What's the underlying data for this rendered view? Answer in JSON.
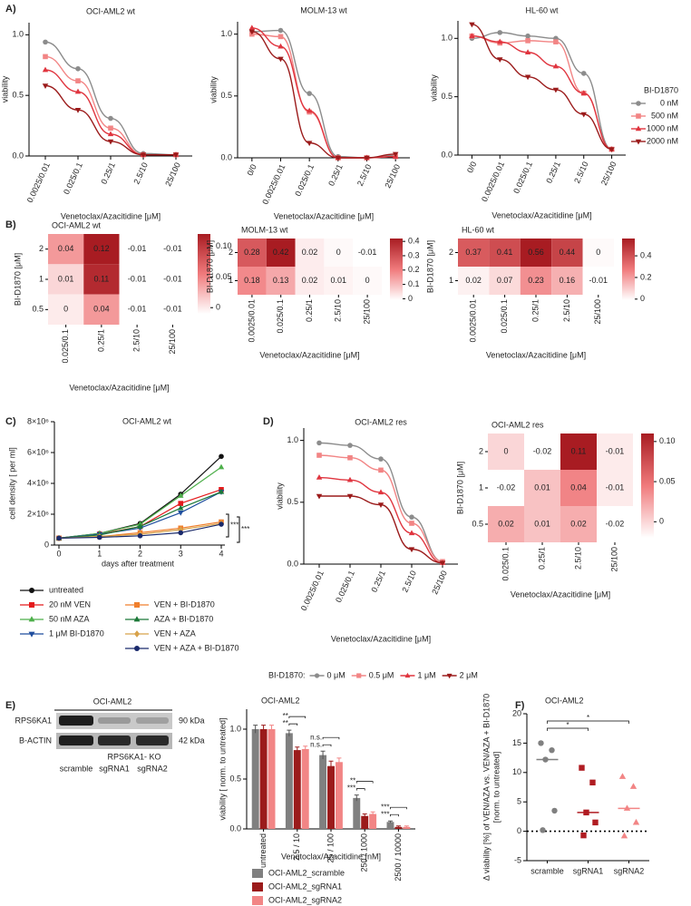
{
  "chart_data": [
    {
      "type": "curve",
      "panel": "A)",
      "title": "OCI-AML2 wt",
      "x_label": "Venetoclax/Azacitidine [μM]",
      "y_label": "viability",
      "categories": [
        "0.0025/0.01",
        "0.025/0.1",
        "0.25/1",
        "2.5/10",
        "25/100"
      ],
      "ylim": [
        0,
        1.1
      ],
      "yticks": [
        {
          "value": 0,
          "label": "0.0"
        },
        {
          "value": 0.5,
          "label": "0.5"
        },
        {
          "value": 1,
          "label": "1.0"
        }
      ],
      "series": [
        {
          "color": "#8c8c8c",
          "marker": "circle",
          "values": [
            0.94,
            0.72,
            0.31,
            0.02,
            0.01
          ]
        },
        {
          "color": "#f28585",
          "marker": "square",
          "values": [
            0.82,
            0.62,
            0.23,
            0.01,
            0.01
          ]
        },
        {
          "color": "#e0353f",
          "marker": "triangle-up",
          "values": [
            0.71,
            0.53,
            0.18,
            0.01,
            0.01
          ]
        },
        {
          "color": "#9b1b1b",
          "marker": "triangle-down",
          "values": [
            0.58,
            0.38,
            0.12,
            0.01,
            0.01
          ]
        }
      ]
    },
    {
      "type": "curve",
      "title": "MOLM-13 wt",
      "x_label": "Venetoclax/Azacitidine [μM]",
      "y_label": "viability",
      "categories": [
        "0/0",
        "0.0025/0.01",
        "0.025/0.1",
        "0.25/1",
        "2.5/10",
        "25/100"
      ],
      "ylim": [
        0,
        1.1
      ],
      "yticks": [
        {
          "value": 0,
          "label": "0.0"
        },
        {
          "value": 0.5,
          "label": "0.5"
        },
        {
          "value": 1,
          "label": "1.0"
        }
      ],
      "series": [
        {
          "color": "#8c8c8c",
          "marker": "circle",
          "values": [
            1.02,
            1.03,
            0.52,
            0.01,
            0,
            0.02
          ]
        },
        {
          "color": "#f28585",
          "marker": "square",
          "values": [
            1.0,
            0.98,
            0.37,
            0,
            0,
            0.01
          ]
        },
        {
          "color": "#e0353f",
          "marker": "triangle-up",
          "values": [
            1.05,
            0.9,
            0.38,
            0,
            0,
            0.01
          ]
        },
        {
          "color": "#9b1b1b",
          "marker": "triangle-down",
          "values": [
            1.02,
            0.8,
            0.12,
            0,
            0,
            0.03
          ]
        }
      ]
    },
    {
      "type": "curve",
      "title": "HL-60 wt",
      "x_label": "Venetoclax/Azacitidine [μM]",
      "y_label": "viability",
      "categories": [
        "0/0",
        "0.0025/0.01",
        "0.025/0.1",
        "0.25/1",
        "2.5/10",
        "25/100"
      ],
      "ylim": [
        0,
        1.15
      ],
      "yticks": [
        {
          "value": 0,
          "label": "0.0"
        },
        {
          "value": 0.5,
          "label": "0.5"
        },
        {
          "value": 1,
          "label": "1.0"
        }
      ],
      "legend": "right",
      "legend_title": "BI-D1870",
      "series": [
        {
          "name": "0 nM",
          "color": "#8c8c8c",
          "marker": "circle",
          "values": [
            1.0,
            1.05,
            1.02,
            1.0,
            0.7,
            0.05
          ]
        },
        {
          "name": "500 nM",
          "color": "#f28585",
          "marker": "square",
          "values": [
            1.02,
            0.96,
            0.98,
            0.97,
            0.53,
            0.05
          ]
        },
        {
          "name": "1000 nM",
          "color": "#e0353f",
          "marker": "triangle-up",
          "values": [
            1.02,
            0.97,
            0.88,
            0.76,
            0.53,
            0.05
          ]
        },
        {
          "name": "2000 nM",
          "color": "#9b1b1b",
          "marker": "triangle-down",
          "values": [
            1.12,
            0.82,
            0.67,
            0.56,
            0.35,
            0.05
          ]
        }
      ]
    },
    {
      "type": "heatmap",
      "panel": "B)",
      "title": "OCI-AML2 wt",
      "x_label": "Venetoclax/Azacitidine [μM]",
      "y_label": "BI-D1870 [μM]",
      "columns": [
        "0.025/0.1",
        "0.25/1",
        "2.5/10",
        "25/100"
      ],
      "rows": [
        "2",
        "1",
        "0.5"
      ],
      "values": [
        [
          0.04,
          0.12,
          -0.01,
          -0.01
        ],
        [
          0.01,
          0.11,
          -0.01,
          -0.01
        ],
        [
          0,
          0.04,
          -0.01,
          -0.01
        ]
      ],
      "zlim": [
        -0.01,
        0.12
      ],
      "zticks": [
        0,
        0.05,
        {
          "value": 0.1,
          "label": "0.10"
        }
      ],
      "cmap": [
        "#ffffff",
        "#f07a7c",
        "#a81c22"
      ]
    },
    {
      "type": "heatmap",
      "title": "MOLM-13 wt",
      "x_label": "Venetoclax/Azacitidine [μM]",
      "y_label": "BI-D1870 [μM]",
      "columns": [
        "0.0025/0.01",
        "0.025/0.1",
        "0.25/1",
        "2.5/10",
        "25/100"
      ],
      "rows": [
        "2",
        "1"
      ],
      "values": [
        [
          0.28,
          0.42,
          0.02,
          0,
          -0.01
        ],
        [
          0.18,
          0.13,
          0.02,
          0.01,
          0
        ]
      ],
      "zlim": [
        -0.01,
        0.42
      ],
      "zticks": [
        0,
        0.1,
        0.2,
        0.3,
        0.4
      ],
      "cmap": [
        "#ffffff",
        "#f07a7c",
        "#a81c22"
      ]
    },
    {
      "type": "heatmap",
      "title": "HL-60 wt",
      "x_label": "Venetoclax/Azacitidine [μM]",
      "y_label": "BI-D1870 [μM]",
      "columns": [
        "0.0025/0.01",
        "0.025/0.1",
        "0.25/1",
        "2.5/10",
        "25/100"
      ],
      "rows": [
        "2",
        "1"
      ],
      "values": [
        [
          0.37,
          0.41,
          0.56,
          0.44,
          0
        ],
        [
          0.02,
          0.07,
          0.23,
          0.16,
          -0.01
        ]
      ],
      "zlim": [
        -0.01,
        0.56
      ],
      "zticks": [
        0,
        0.2,
        0.4
      ],
      "cmap": [
        "#ffffff",
        "#f07a7c",
        "#a81c22"
      ]
    },
    {
      "type": "line",
      "panel": "C)",
      "title": "OCI-AML2 wt",
      "x_label": "days after treatment",
      "y_label": "cell density [ per ml]",
      "x": [
        0,
        1,
        2,
        3,
        4
      ],
      "xlim": [
        0,
        4
      ],
      "xticks": [
        0,
        1,
        2,
        3,
        4
      ],
      "ylim": [
        0,
        8000000
      ],
      "yticks": [
        0,
        {
          "value": 2000000,
          "label": "2×10⁶"
        },
        {
          "value": 4000000,
          "label": "4×10⁶"
        },
        {
          "value": 6000000,
          "label": "6×10⁶"
        },
        {
          "value": 8000000,
          "label": "8×10⁶"
        }
      ],
      "significance": [
        "***",
        "***"
      ],
      "legend": "bottom",
      "series": [
        {
          "name": "untreated",
          "color": "#111111",
          "marker": "circle",
          "values": [
            450000,
            750000,
            1400000,
            3300000,
            5750000
          ]
        },
        {
          "name": "20 nM VEN",
          "color": "#e41a1c",
          "marker": "square",
          "values": [
            450000,
            700000,
            1200000,
            2700000,
            3600000
          ]
        },
        {
          "name": "50 nM AZA",
          "color": "#4daf4a",
          "marker": "triangle-up",
          "values": [
            450000,
            750000,
            1350000,
            3200000,
            5050000
          ]
        },
        {
          "name": "1 μM BI-D1870",
          "color": "#1f4e9e",
          "marker": "triangle-down",
          "values": [
            450000,
            700000,
            1100000,
            2100000,
            3450000
          ]
        },
        {
          "name": "VEN + BI-D1870",
          "color": "#f07f2d",
          "marker": "square",
          "values": [
            450000,
            550000,
            800000,
            1100000,
            1500000
          ]
        },
        {
          "name": "AZA + BI-D1870",
          "color": "#1b7837",
          "marker": "triangle-up",
          "values": [
            450000,
            650000,
            1200000,
            2400000,
            3450000
          ]
        },
        {
          "name": "VEN + AZA",
          "color": "#d8a24a",
          "marker": "diamond",
          "values": [
            450000,
            550000,
            700000,
            1000000,
            1400000
          ]
        },
        {
          "name": "VEN + AZA + BI-D1870",
          "color": "#1a2a6c",
          "marker": "circle",
          "values": [
            450000,
            500000,
            600000,
            800000,
            1350000
          ]
        }
      ]
    },
    {
      "type": "curve",
      "panel": "D)",
      "title": "OCI-AML2 res",
      "x_label": "Venetoclax/Azacitidine [μM]",
      "y_label": "viability",
      "categories": [
        "0.0025/0.01",
        "0.025/0.1",
        "0.25/1",
        "2.5/10",
        "25/100"
      ],
      "ylim": [
        0,
        1.1
      ],
      "yticks": [
        {
          "value": 0,
          "label": "0.0"
        },
        {
          "value": 0.5,
          "label": "0.5"
        },
        {
          "value": 1,
          "label": "1.0"
        }
      ],
      "legend": "bottom",
      "legend_title": "BI-D1870:",
      "series": [
        {
          "name": "0 μM",
          "color": "#8c8c8c",
          "marker": "circle",
          "values": [
            0.98,
            0.96,
            0.85,
            0.38,
            0.02
          ]
        },
        {
          "name": "0.5 μM",
          "color": "#f28585",
          "marker": "square",
          "values": [
            0.88,
            0.86,
            0.76,
            0.33,
            0.02
          ]
        },
        {
          "name": "1 μM",
          "color": "#e0353f",
          "marker": "triangle-up",
          "values": [
            0.7,
            0.68,
            0.58,
            0.25,
            0.01
          ]
        },
        {
          "name": "2 μM",
          "color": "#9b1b1b",
          "marker": "triangle-down",
          "values": [
            0.55,
            0.55,
            0.48,
            0.12,
            0.01
          ]
        }
      ]
    },
    {
      "type": "heatmap",
      "title": "OCI-AML2 res",
      "x_label": "Venetoclax/Azacitidine [μM]",
      "y_label": "BI-D1870 [μM]",
      "columns": [
        "0.025/0.1",
        "0.25/1",
        "2.5/10",
        "25/100"
      ],
      "rows": [
        "2",
        "1",
        "0.5"
      ],
      "values": [
        [
          0,
          -0.02,
          0.11,
          -0.01
        ],
        [
          -0.02,
          0.01,
          0.04,
          -0.01
        ],
        [
          0.02,
          0.01,
          0.02,
          -0.02
        ]
      ],
      "zlim": [
        -0.02,
        0.11
      ],
      "zticks": [
        0,
        0.05,
        {
          "value": 0.1,
          "label": "0.10"
        }
      ],
      "cmap": [
        "#ffffff",
        "#f07a7c",
        "#a81c22"
      ]
    },
    {
      "type": "bar",
      "title": "OCI-AML2",
      "x_label": "Venetoclax/Azacitidine [nM]",
      "y_label": "viability [ norm. to untreated]",
      "categories": [
        "untreated",
        "2.5 / 10",
        "25 / 100",
        "250 / 1000",
        "2500 / 10000"
      ],
      "ylim": [
        0,
        1.2
      ],
      "yticks": [
        {
          "value": 0,
          "label": "0.0"
        },
        {
          "value": 0.5,
          "label": "0.5"
        },
        {
          "value": 1,
          "label": "1.0"
        }
      ],
      "significance": [
        null,
        [
          "**",
          "**"
        ],
        [
          "n.s.",
          "n.s."
        ],
        [
          "**",
          "***"
        ],
        [
          "***",
          "***"
        ]
      ],
      "series": [
        {
          "name": "OCI-AML2_scramble",
          "color": "#808080",
          "values": [
            1.0,
            0.96,
            0.74,
            0.31,
            0.07
          ],
          "errors": [
            0.04,
            0.03,
            0.04,
            0.03,
            0.01
          ]
        },
        {
          "name": "OCI-AML2_sgRNA1",
          "color": "#9b1b1b",
          "values": [
            1.0,
            0.79,
            0.63,
            0.13,
            0.02
          ],
          "errors": [
            0.04,
            0.03,
            0.05,
            0.02,
            0.01
          ]
        },
        {
          "name": "OCI-AML2_sgRNA2",
          "color": "#f28585",
          "values": [
            1.0,
            0.8,
            0.67,
            0.15,
            0.02
          ],
          "errors": [
            0.04,
            0.03,
            0.04,
            0.02,
            0.01
          ]
        }
      ]
    },
    {
      "type": "dot",
      "panel": "F)",
      "title": "OCI-AML2",
      "y_label": [
        "Δ viability [%] of VEN/AZA vs. VEN/AZA + BI-D1870",
        "[norm. to untreated]"
      ],
      "categories": [
        "scramble",
        "sgRNA1",
        "sgRNA2"
      ],
      "colors": [
        "#808080",
        "#b01c22",
        "#f28585"
      ],
      "markers": [
        "circle",
        "square",
        "triangle-up"
      ],
      "points": [
        [
          15,
          13.8,
          12.2,
          3.5,
          0.2
        ],
        [
          10.8,
          8.3,
          3.2,
          1.5,
          -0.7
        ],
        [
          9.3,
          7.6,
          3.9,
          1.5,
          -0.8
        ]
      ],
      "medians": [
        12.2,
        3.2,
        3.9
      ],
      "ylim": [
        -5,
        20
      ],
      "yticks": [
        -5,
        0,
        5,
        10,
        15,
        20
      ],
      "zero_line": true,
      "significance": [
        "*",
        "*"
      ]
    }
  ],
  "blot": {
    "panel": "E)",
    "title": "OCI-AML2",
    "proteins": [
      "RPS6KA1",
      "B-ACTIN"
    ],
    "sizes": [
      "90 kDa",
      "42 kDa"
    ],
    "group": "RPS6KA1- KO",
    "lanes": [
      "scramble",
      "sgRNA1",
      "sgRNA2"
    ]
  }
}
